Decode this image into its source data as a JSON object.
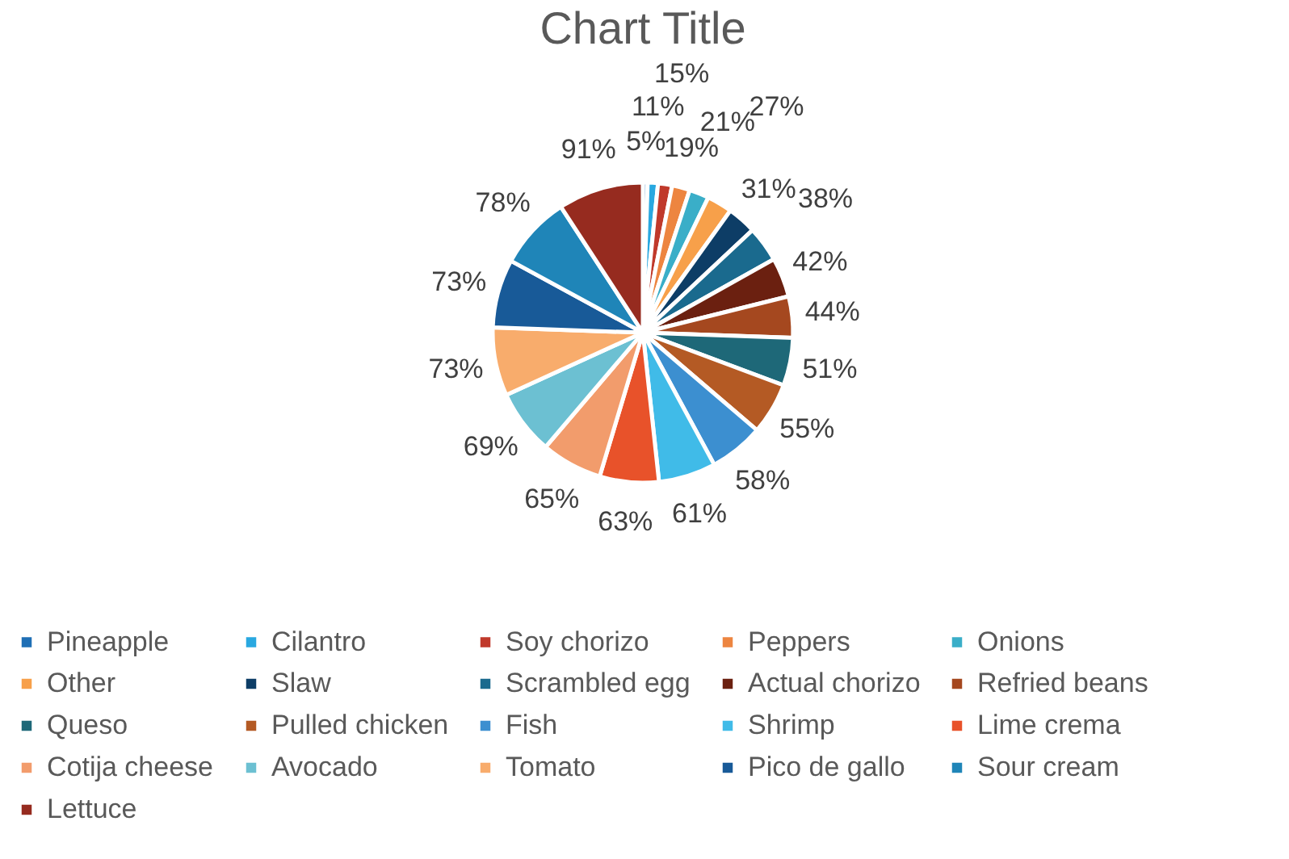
{
  "chart_data": {
    "type": "pie",
    "title": "Chart Title",
    "categories": [
      "Pineapple",
      "Cilantro",
      "Soy chorizo",
      "Peppers",
      "Onions",
      "Other",
      "Slaw",
      "Scrambled egg",
      "Actual chorizo",
      "Refried beans",
      "Queso",
      "Pulled chicken",
      "Fish",
      "Shrimp",
      "Lime crema",
      "Cotija cheese",
      "Avocado",
      "Tomato",
      "Pico de gallo",
      "Sour cream",
      "Lettuce"
    ],
    "values": [
      5,
      11,
      15,
      19,
      21,
      27,
      31,
      38,
      42,
      44,
      51,
      55,
      58,
      61,
      63,
      65,
      69,
      73,
      73,
      78,
      91
    ],
    "value_labels": [
      "5%",
      "11%",
      "15%",
      "19%",
      "21%",
      "27%",
      "31%",
      "38%",
      "42%",
      "44%",
      "51%",
      "55%",
      "58%",
      "61%",
      "63%",
      "65%",
      "69%",
      "73%",
      "73%",
      "78%",
      "91%"
    ],
    "colors": [
      "#1f6fb5",
      "#29a8e0",
      "#c0392b",
      "#ed8540",
      "#3aaec8",
      "#f7a04a",
      "#0d3d66",
      "#1a6a8e",
      "#6b2010",
      "#a5481f",
      "#1e6878",
      "#b45a24",
      "#3c8fd0",
      "#40bbe8",
      "#e8522a",
      "#f29c6c",
      "#6cc0d2",
      "#f8ac6c",
      "#185a98",
      "#1f85b8",
      "#962b1f"
    ],
    "legend": "bottom"
  }
}
